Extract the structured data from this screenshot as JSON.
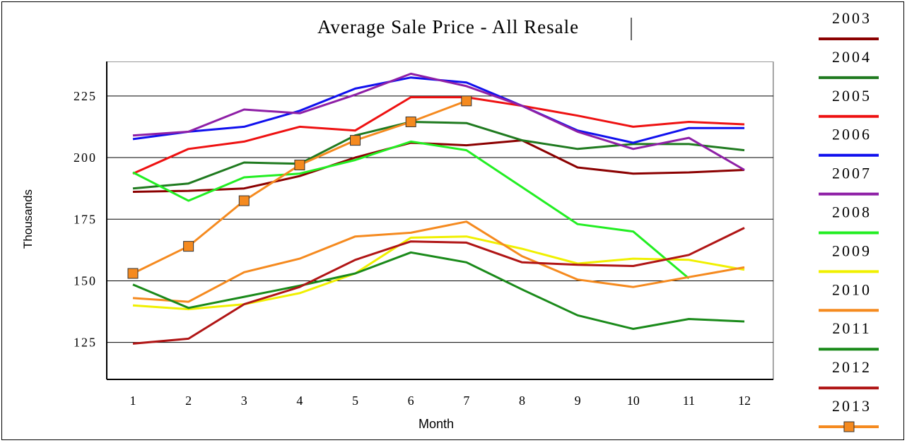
{
  "chart_data": {
    "type": "line",
    "title": "Average Sale Price - All Resale",
    "xlabel": "Month",
    "ylabel": "Thousands",
    "x": [
      1,
      2,
      3,
      4,
      5,
      6,
      7,
      8,
      9,
      10,
      11,
      12
    ],
    "y_ticks": [
      125,
      150,
      175,
      200,
      225
    ],
    "y_tick_labels": [
      "125",
      "150",
      "175",
      "200",
      "225"
    ],
    "ylim": [
      110,
      239
    ],
    "grid": "horizontal",
    "legend_position": "right",
    "series": [
      {
        "name": "2003",
        "color": "#8b0000",
        "marker": "none",
        "values": [
          186.1,
          186.5,
          187.5,
          192.5,
          200,
          206,
          205,
          207,
          196,
          193.5,
          194,
          195
        ]
      },
      {
        "name": "2004",
        "color": "#1f7a1f",
        "marker": "none",
        "values": [
          187.5,
          189.5,
          198,
          197.5,
          209,
          214.5,
          214,
          207,
          203.5,
          205.5,
          205.5,
          203
        ]
      },
      {
        "name": "2005",
        "color": "#ee1111",
        "marker": "none",
        "values": [
          193.5,
          203.5,
          206.5,
          212.5,
          211,
          224.5,
          224.5,
          221,
          217,
          212.5,
          214.5,
          213.5
        ]
      },
      {
        "name": "2006",
        "color": "#1010ee",
        "marker": "none",
        "values": [
          207.5,
          210.5,
          212.5,
          219,
          228,
          232.5,
          230.5,
          221,
          211,
          206,
          212,
          212
        ]
      },
      {
        "name": "2007",
        "color": "#8e1fa6",
        "marker": "none",
        "values": [
          209,
          210.5,
          219.5,
          218,
          225.5,
          234,
          229,
          221,
          210.5,
          203.5,
          208,
          195
        ]
      },
      {
        "name": "2008",
        "color": "#22ee22",
        "marker": "none",
        "values": [
          194,
          182.5,
          192,
          193.5,
          199,
          206.5,
          203,
          null,
          173,
          170,
          151,
          null
        ]
      },
      {
        "name": "2009",
        "color": "#f0f000",
        "marker": "none",
        "values": [
          140,
          138.5,
          140.5,
          145,
          153,
          167.5,
          168,
          163,
          157,
          159,
          158.5,
          154.5
        ]
      },
      {
        "name": "2010",
        "color": "#f58a1f",
        "marker": "none",
        "values": [
          143,
          141.5,
          153.5,
          159,
          168,
          169.5,
          174,
          160,
          150.5,
          147.5,
          151.5,
          155.5
        ]
      },
      {
        "name": "2011",
        "color": "#1a8a1a",
        "marker": "none",
        "values": [
          148.5,
          139,
          143.5,
          148,
          153,
          161.5,
          157.5,
          146.5,
          136,
          130.5,
          134.5,
          133.5
        ]
      },
      {
        "name": "2012",
        "color": "#b01515",
        "marker": "none",
        "values": [
          124.5,
          126.5,
          140.5,
          147.5,
          158.5,
          166,
          165.5,
          157.5,
          156.5,
          156,
          160.5,
          171.5
        ]
      },
      {
        "name": "2013",
        "color": "#f58a1f",
        "marker": "square",
        "values": [
          153,
          164,
          182.5,
          197,
          207,
          214.5,
          223,
          null,
          null,
          null,
          null,
          null
        ]
      }
    ]
  }
}
